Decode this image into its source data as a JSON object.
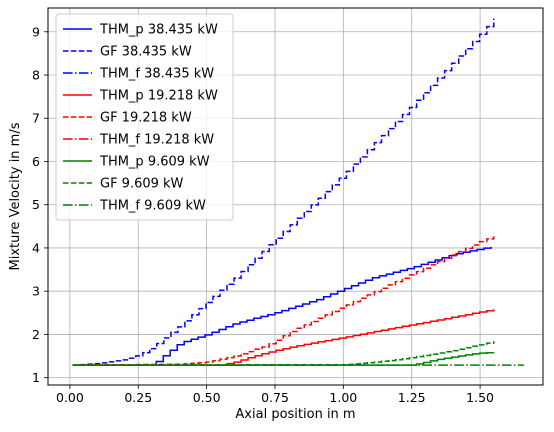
{
  "chart_data": {
    "type": "line",
    "xlabel": "Axial position in m",
    "ylabel": "Mixture Velocity in m/s",
    "xlim": [
      -0.08,
      1.73
    ],
    "ylim": [
      0.83,
      9.55
    ],
    "xticks": [
      0.0,
      0.25,
      0.5,
      0.75,
      1.0,
      1.25,
      1.5
    ],
    "xtick_labels": [
      "0.00",
      "0.25",
      "0.50",
      "0.75",
      "1.00",
      "1.25",
      "1.50"
    ],
    "yticks": [
      1,
      2,
      3,
      4,
      5,
      6,
      7,
      8,
      9
    ],
    "ytick_labels": [
      "1",
      "2",
      "3",
      "4",
      "5",
      "6",
      "7",
      "8",
      "9"
    ],
    "grid": true,
    "legend_position": "upper-left",
    "series": [
      {
        "name": "THM_p 38.435 kW",
        "color": "#0000ff",
        "style": "solid",
        "step": true,
        "x": [
          0.01,
          0.3,
          0.35,
          0.4,
          0.5,
          0.6,
          0.75,
          0.9,
          1.0,
          1.1,
          1.25,
          1.4,
          1.54
        ],
        "y": [
          1.29,
          1.29,
          1.55,
          1.8,
          2.0,
          2.25,
          2.5,
          2.8,
          3.05,
          3.3,
          3.55,
          3.85,
          4.03
        ]
      },
      {
        "name": "GF 38.435 kW",
        "color": "#0000ff",
        "style": "dashed",
        "step": true,
        "x": [
          0.01,
          0.1,
          0.2,
          0.25,
          0.3,
          0.35,
          0.4,
          0.5,
          0.6,
          0.75,
          0.9,
          1.0,
          1.1,
          1.25,
          1.4,
          1.5,
          1.55
        ],
        "y": [
          1.29,
          1.33,
          1.42,
          1.52,
          1.7,
          1.95,
          2.2,
          2.75,
          3.3,
          4.2,
          5.1,
          5.7,
          6.35,
          7.3,
          8.3,
          8.95,
          9.3
        ]
      },
      {
        "name": "THM_f 38.435 kW",
        "color": "#0000ff",
        "style": "dashdot",
        "step": false,
        "x": [],
        "y": []
      },
      {
        "name": "THM_p 19.218 kW",
        "color": "#ff0000",
        "style": "solid",
        "step": true,
        "x": [
          0.01,
          0.55,
          0.6,
          0.7,
          0.8,
          0.9,
          1.0,
          1.1,
          1.2,
          1.3,
          1.4,
          1.5,
          1.55
        ],
        "y": [
          1.29,
          1.29,
          1.36,
          1.55,
          1.7,
          1.82,
          1.93,
          2.05,
          2.17,
          2.28,
          2.4,
          2.52,
          2.58
        ]
      },
      {
        "name": "GF 19.218 kW",
        "color": "#ff0000",
        "style": "dashed",
        "step": true,
        "x": [
          0.01,
          0.4,
          0.5,
          0.6,
          0.7,
          0.75,
          0.8,
          0.9,
          1.0,
          1.1,
          1.2,
          1.3,
          1.4,
          1.5,
          1.55
        ],
        "y": [
          1.29,
          1.31,
          1.36,
          1.5,
          1.7,
          1.85,
          2.05,
          2.35,
          2.65,
          2.95,
          3.25,
          3.55,
          3.85,
          4.15,
          4.27
        ]
      },
      {
        "name": "THM_f 19.218 kW",
        "color": "#ff0000",
        "style": "dashdot",
        "step": false,
        "x": [],
        "y": []
      },
      {
        "name": "THM_p 9.609 kW",
        "color": "#008000",
        "style": "solid",
        "step": true,
        "x": [
          0.01,
          1.25,
          1.3,
          1.35,
          1.4,
          1.45,
          1.5,
          1.55
        ],
        "y": [
          1.29,
          1.29,
          1.36,
          1.43,
          1.48,
          1.53,
          1.57,
          1.58
        ]
      },
      {
        "name": "GF 9.609 kW",
        "color": "#008000",
        "style": "dashed",
        "step": true,
        "x": [
          0.01,
          1.0,
          1.1,
          1.2,
          1.3,
          1.4,
          1.5,
          1.55
        ],
        "y": [
          1.29,
          1.3,
          1.35,
          1.42,
          1.52,
          1.63,
          1.76,
          1.84
        ]
      },
      {
        "name": "THM_f 9.609 kW",
        "color": "#008000",
        "style": "dashdot",
        "step": false,
        "x": [
          0.01,
          1.66
        ],
        "y": [
          1.29,
          1.29
        ]
      }
    ]
  }
}
